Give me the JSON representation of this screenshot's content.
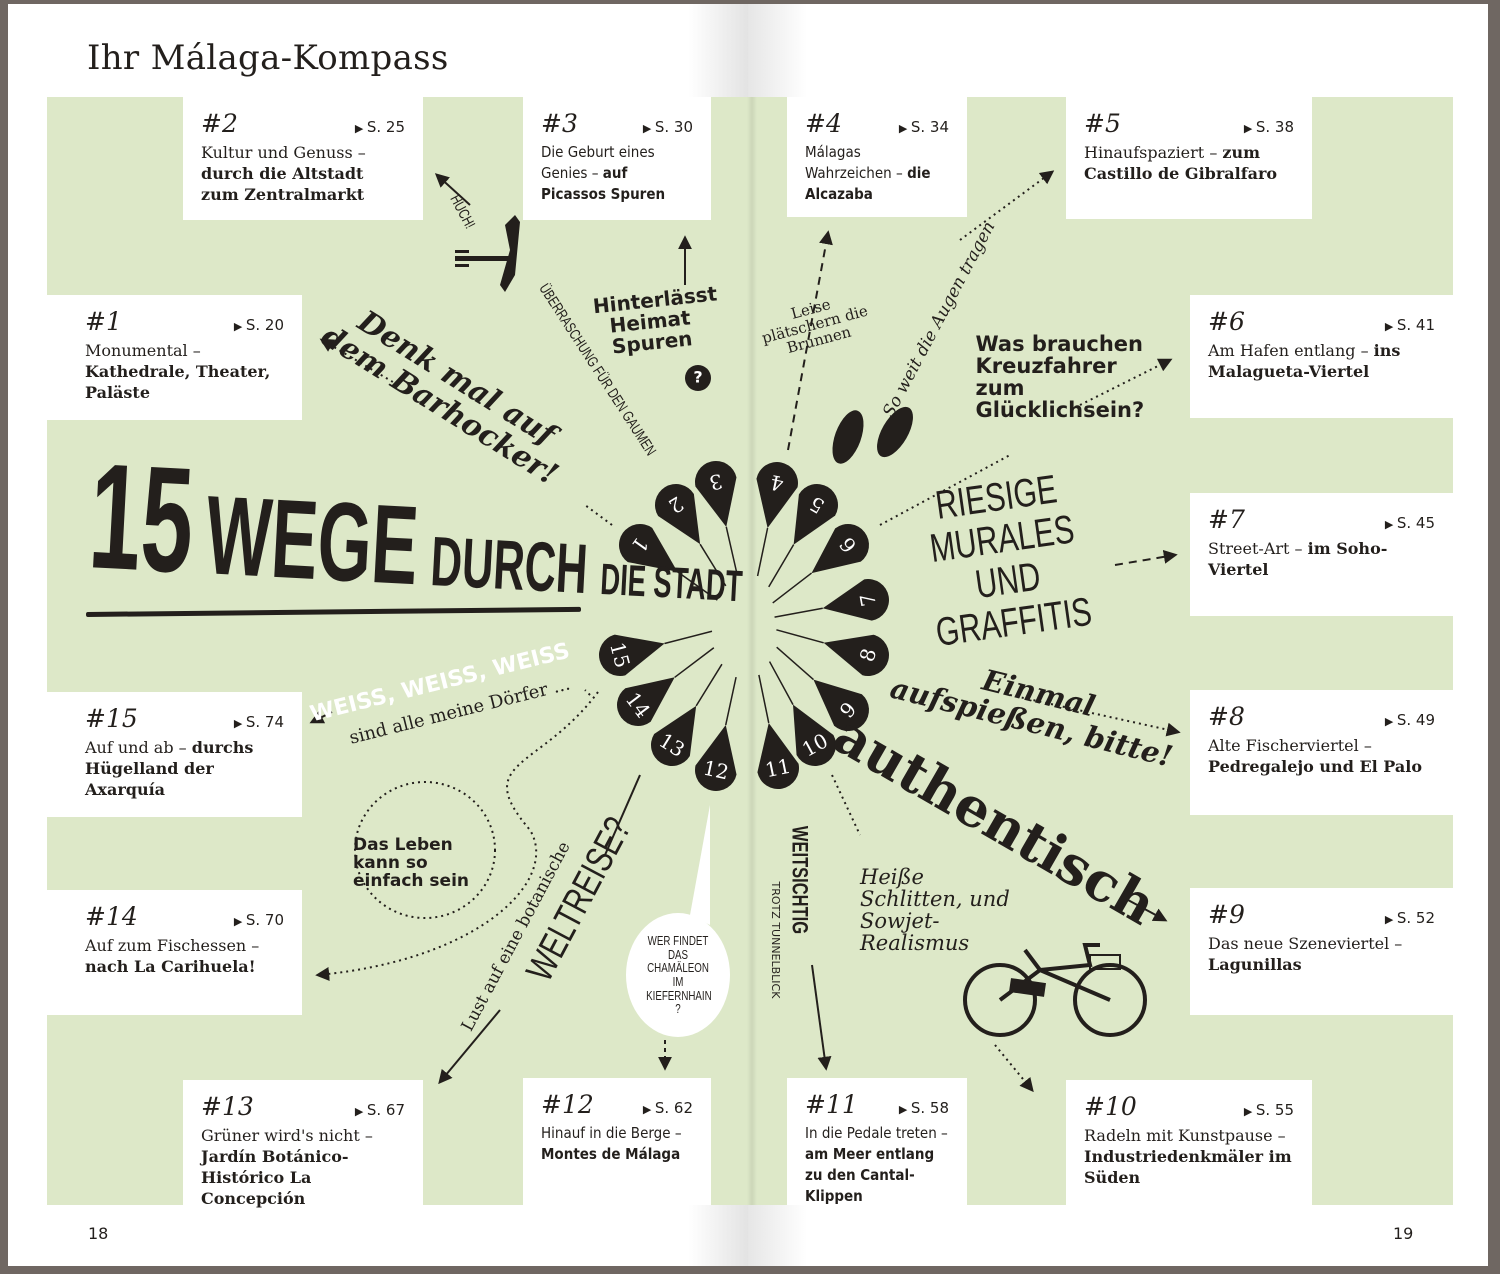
{
  "title": "Ihr Málaga-Kompass",
  "headline": [
    "15",
    "WEGE",
    "DURCH",
    "DIE STADT"
  ],
  "cards": [
    {
      "number": "#1",
      "page": "S. 20",
      "text": "Monumental –",
      "highlight": "Kathedrale, Theater, Paläste"
    },
    {
      "number": "#2",
      "page": "S. 25",
      "text": "Kultur und Genuss –",
      "highlight": "durch die Altstadt zum Zentralmarkt"
    },
    {
      "number": "#3",
      "page": "S. 30",
      "text": "Die Geburt eines Genies –",
      "highlight": "auf Picassos Spuren"
    },
    {
      "number": "#4",
      "page": "S. 34",
      "text": "Málagas Wahrzeichen –",
      "highlight": "die Alcazaba"
    },
    {
      "number": "#5",
      "page": "S. 38",
      "text": "Hinaufspaziert –",
      "highlight": "zum Castillo de Gibralfaro"
    },
    {
      "number": "#6",
      "page": "S. 41",
      "text": "Am Hafen entlang –",
      "highlight": "ins Malagueta-Viertel"
    },
    {
      "number": "#7",
      "page": "S. 45",
      "text": "Street-Art –",
      "highlight": "im Soho-Viertel"
    },
    {
      "number": "#8",
      "page": "S. 49",
      "text": "Alte Fischerviertel –",
      "highlight": "Pedregalejo und El Palo"
    },
    {
      "number": "#9",
      "page": "S. 52",
      "text": "Das neue Szeneviertel –",
      "highlight": "Lagunillas"
    },
    {
      "number": "#10",
      "page": "S. 55",
      "text": "Radeln mit Kunstpause –",
      "highlight": "Industriedenkmäler im Süden"
    },
    {
      "number": "#11",
      "page": "S. 58",
      "text": "In die Pedale treten –",
      "highlight": "am Meer entlang zu den Cantal-Klippen"
    },
    {
      "number": "#12",
      "page": "S. 62",
      "text": "Hinauf in die Berge –",
      "highlight": "Montes de Málaga"
    },
    {
      "number": "#13",
      "page": "S. 67",
      "text": "Grüner wird's nicht –",
      "highlight": "Jardín Botánico-Histórico La Concepción"
    },
    {
      "number": "#14",
      "page": "S. 70",
      "text": "Auf zum Fischessen –",
      "highlight": "nach La Carihuela!"
    },
    {
      "number": "#15",
      "page": "S. 74",
      "text": "Auf und ab –",
      "highlight": "durchs Hügelland der Axarquía"
    }
  ],
  "pins": [
    "1",
    "2",
    "3",
    "4",
    "5",
    "6",
    "7",
    "8",
    "9",
    "10",
    "11",
    "12",
    "13",
    "14",
    "15"
  ],
  "notes": [
    "HUCH!",
    "ÜBERRASCHUNG FÜR DEN GAUMEN",
    "Hinterlässt Heimat Spuren",
    "?",
    "Denk mal auf dem Barhocker!",
    "Leise plätschern die Brunnen",
    "So weit die Augen tragen",
    "Was brauchen Kreuzfahrer zum Glücklichsein?",
    "RIESIGE MURALES UND GRAFFITIS",
    "Einmal aufspießen, bitte!",
    "authentisch",
    "WEISS, WEISS, WEISS",
    "sind alle meine Dörfer ...",
    "Das Leben kann so einfach sein",
    "Lust auf eine botanische",
    "WELTREISE?",
    "WER FINDET DAS CHAMÄLEON IM KIEFERNHAIN ?",
    "WEITSICHTIG",
    "TROTZ TUNNELBLICK",
    "Heiße Schlitten, und Sowjet-Realismus"
  ],
  "page_numbers": [
    "18",
    "19"
  ]
}
